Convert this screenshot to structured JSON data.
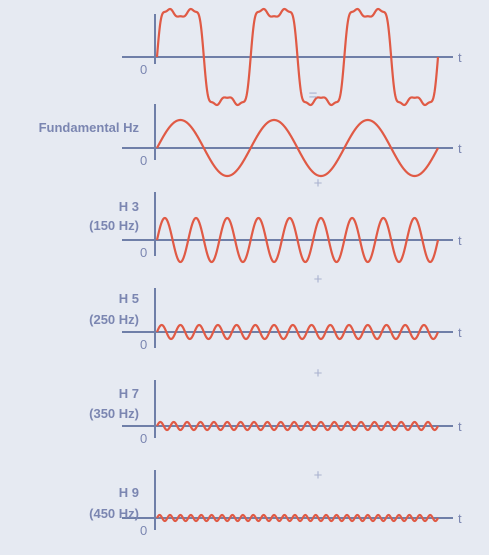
{
  "colors": {
    "background": "#e6eaf2",
    "axis": "#6f7fa8",
    "label": "#7b86b1",
    "wave": "#e05a45",
    "operator": "#a9b2cf"
  },
  "axis_letter": "t",
  "origin_label": "0",
  "operators": [
    "=",
    "+",
    "+",
    "+",
    "+"
  ],
  "panels": [
    {
      "id": "sum",
      "label_lines": [],
      "harmonics": [
        [
          1,
          1
        ],
        [
          3,
          0.34
        ],
        [
          5,
          0.1
        ],
        [
          7,
          0.06
        ],
        [
          9,
          0.04
        ]
      ],
      "cycles": 3
    },
    {
      "id": "fundamental",
      "label_lines": [
        "Fundamental Hz"
      ],
      "harmonics": [
        [
          1,
          1
        ]
      ],
      "cycles": 3
    },
    {
      "id": "h3",
      "label_lines": [
        "H 3",
        "(150 Hz)"
      ],
      "harmonics": [
        [
          3,
          1
        ]
      ],
      "cycles": 3
    },
    {
      "id": "h5",
      "label_lines": [
        "H 5",
        "(250 Hz)"
      ],
      "harmonics": [
        [
          5,
          1
        ]
      ],
      "cycles": 3
    },
    {
      "id": "h7",
      "label_lines": [
        "H 7",
        "(350 Hz)"
      ],
      "harmonics": [
        [
          7,
          1
        ]
      ],
      "cycles": 3
    },
    {
      "id": "h9",
      "label_lines": [
        "H 9",
        "(450 Hz)"
      ],
      "harmonics": [
        [
          9,
          1
        ]
      ],
      "cycles": 3
    }
  ]
}
